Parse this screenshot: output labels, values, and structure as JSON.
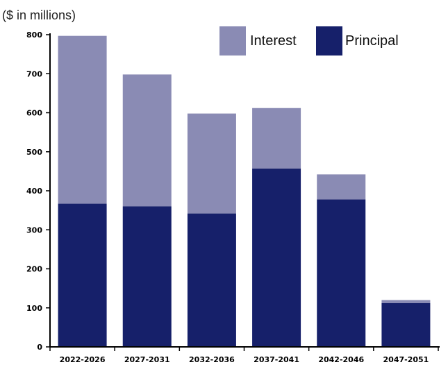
{
  "chart_data": {
    "type": "bar",
    "stacked": true,
    "unit_label": "($ in millions)",
    "categories": [
      "2022-2026",
      "2027-2031",
      "2032-2036",
      "2037-2041",
      "2042-2046",
      "2047-2051"
    ],
    "series": [
      {
        "name": "Principal",
        "color": "#16206a",
        "values": [
          367,
          360,
          342,
          457,
          378,
          112
        ]
      },
      {
        "name": "Interest",
        "color": "#8a8bb4",
        "values": [
          430,
          338,
          256,
          155,
          64,
          8
        ]
      }
    ],
    "legend_order": [
      "Interest",
      "Principal"
    ],
    "legend_position": "top-right",
    "ylim": [
      0,
      800
    ],
    "yticks": [
      0,
      100,
      200,
      300,
      400,
      500,
      600,
      700,
      800
    ],
    "grid": false
  }
}
